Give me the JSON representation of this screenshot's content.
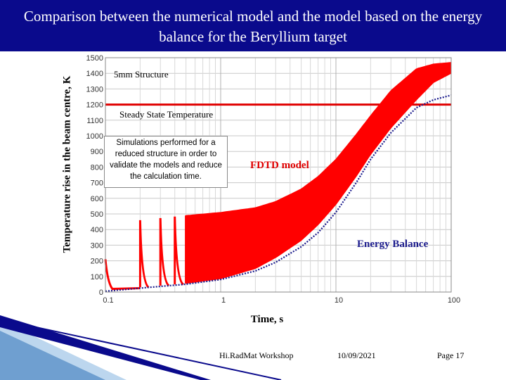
{
  "slide": {
    "title": "Comparison between the numerical model and the model based on the energy balance for the Beryllium target",
    "footer_event": "Hi.RadMat Workshop",
    "footer_date": "10/09/2021",
    "footer_page": "Page 17",
    "header_color": "#0a0a8c"
  },
  "chart_data": {
    "type": "line",
    "xlabel": "Time, s",
    "ylabel": "Temperature rise in the beam centre, K",
    "xscale": "log",
    "xlim": [
      0.1,
      100
    ],
    "ylim": [
      0,
      1500
    ],
    "xticks": [
      0.1,
      1,
      10,
      100
    ],
    "xtick_labels": [
      "0.1",
      "1",
      "10",
      "100"
    ],
    "yticks": [
      0,
      100,
      200,
      300,
      400,
      500,
      600,
      700,
      800,
      900,
      1000,
      1100,
      1200,
      1300,
      1400,
      1500
    ],
    "grid": true,
    "steady_state_temperature": 1200,
    "annotations": [
      {
        "text": "5mm Structure"
      },
      {
        "text": "Steady State Temperature"
      },
      {
        "text": "Simulations performed for a reduced structure in order to validate the models and reduce the calculation time."
      },
      {
        "text": "FDTD model"
      },
      {
        "text": "Energy Balance"
      }
    ],
    "series": [
      {
        "name": "FDTD model",
        "color": "#ff0000",
        "baseline": [
          [
            0.1,
            20
          ],
          [
            0.2,
            30
          ],
          [
            0.5,
            55
          ],
          [
            1,
            85
          ],
          [
            2,
            150
          ],
          [
            3,
            220
          ],
          [
            5,
            330
          ],
          [
            7,
            430
          ],
          [
            10,
            560
          ],
          [
            15,
            740
          ],
          [
            20,
            880
          ],
          [
            30,
            1050
          ],
          [
            50,
            1230
          ],
          [
            70,
            1340
          ],
          [
            100,
            1400
          ]
        ],
        "peaks": [
          [
            0.1,
            210
          ],
          [
            0.2,
            460
          ],
          [
            0.5,
            490
          ],
          [
            1,
            510
          ],
          [
            2,
            540
          ],
          [
            3,
            580
          ],
          [
            5,
            660
          ],
          [
            7,
            740
          ],
          [
            10,
            850
          ],
          [
            15,
            1010
          ],
          [
            20,
            1130
          ],
          [
            30,
            1290
          ],
          [
            50,
            1430
          ],
          [
            70,
            1460
          ],
          [
            100,
            1470
          ]
        ]
      },
      {
        "name": "Energy Balance",
        "color": "#1a1a8c",
        "points": [
          [
            0.1,
            5
          ],
          [
            0.2,
            25
          ],
          [
            0.5,
            50
          ],
          [
            1,
            80
          ],
          [
            2,
            135
          ],
          [
            3,
            190
          ],
          [
            5,
            290
          ],
          [
            7,
            380
          ],
          [
            10,
            510
          ],
          [
            15,
            700
          ],
          [
            20,
            850
          ],
          [
            30,
            1020
          ],
          [
            50,
            1180
          ],
          [
            70,
            1230
          ],
          [
            100,
            1260
          ]
        ]
      }
    ]
  }
}
